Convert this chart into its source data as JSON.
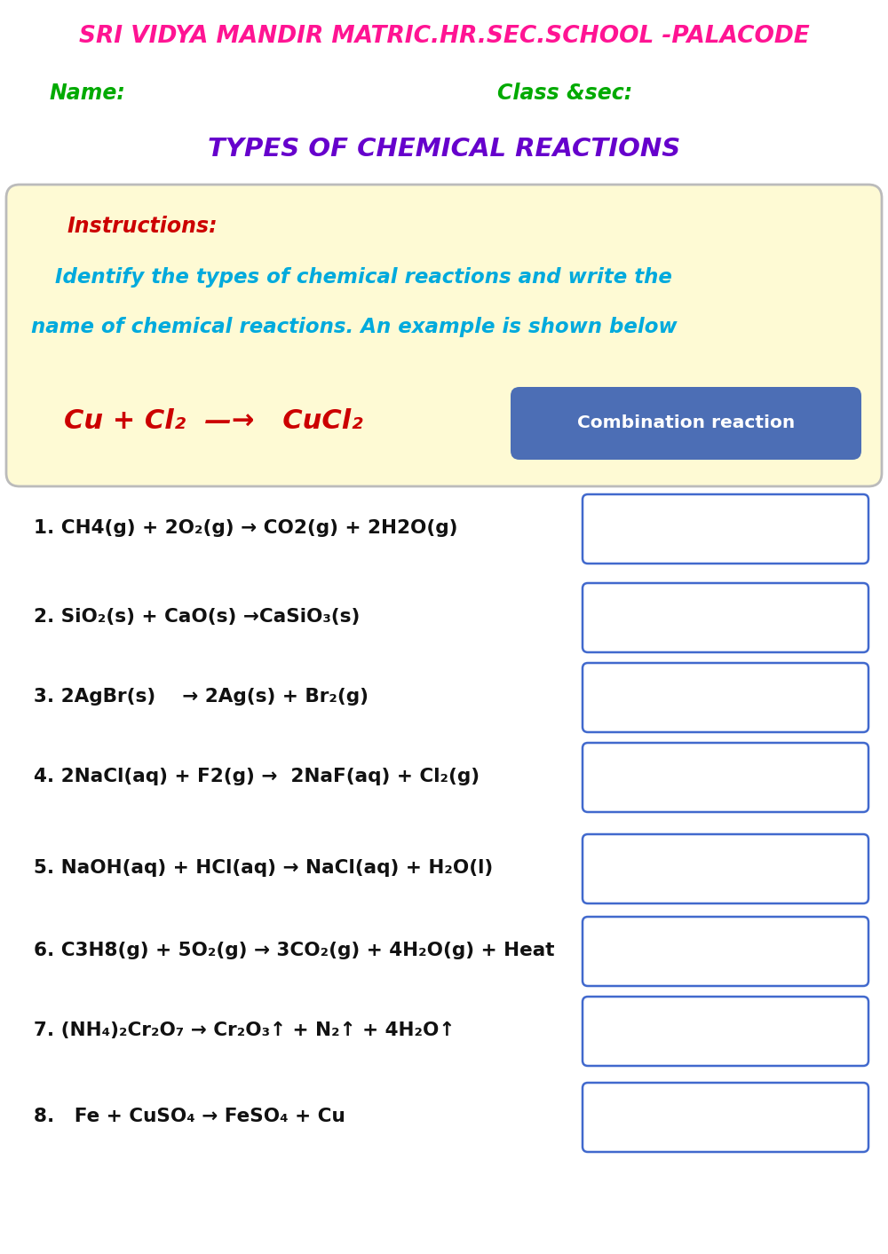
{
  "title_school": "SRI VIDYA MANDIR MATRIC.HR.SEC.SCHOOL -PALACODE",
  "title_school_color": "#FF1493",
  "name_label": "Name:",
  "class_label": "Class &sec:",
  "name_class_color": "#00AA00",
  "worksheet_title": "TYPES OF CHEMICAL REACTIONS",
  "worksheet_title_color": "#6600CC",
  "instructions_label": "Instructions:",
  "instructions_color": "#CC0000",
  "instructions_line1": "Identify the types of chemical reactions and write the",
  "instructions_line2": "name of chemical reactions. An example is shown below",
  "instructions_body_color": "#00AADD",
  "example_equation": "Cu + Cl₂  —→   CuCl₂",
  "example_color": "#CC0000",
  "example_box_text": "Combination reaction",
  "example_box_color": "#4C6EB5",
  "instructions_bg": "#FEFAD4",
  "instructions_border": "#BBBBBB",
  "questions": [
    "1. CH4(g) + 2O₂(g) → CO2(g) + 2H2O(g)",
    "2. SiO₂(s) + CaO(s) →CaSiO₃(s)",
    "3. 2AgBr(s)    → 2Ag(s) + Br₂(g)",
    "4. 2NaCl(aq) + F2(g) →  2NaF(aq) + Cl₂(g)",
    "5. NaOH(aq) + HCl(aq) → NaCl(aq) + H₂O(l)",
    "6. C3H8(g) + 5O₂(g) → 3CO₂(g) + 4H₂O(g) + Heat",
    "7. (NH₄)₂Cr₂O₇ → Cr₂O₃↑ + N₂↑ + 4H₂O↑",
    "8.   Fe + CuSO₄ → FeSO₄ + Cu"
  ],
  "questions_color": "#111111",
  "box_edge_color": "#4169CD",
  "bg_color": "#FFFFFF",
  "q_fontsize": 15.5,
  "instr_fontsize": 16.5,
  "title_fontsize": 21,
  "school_fontsize": 19
}
